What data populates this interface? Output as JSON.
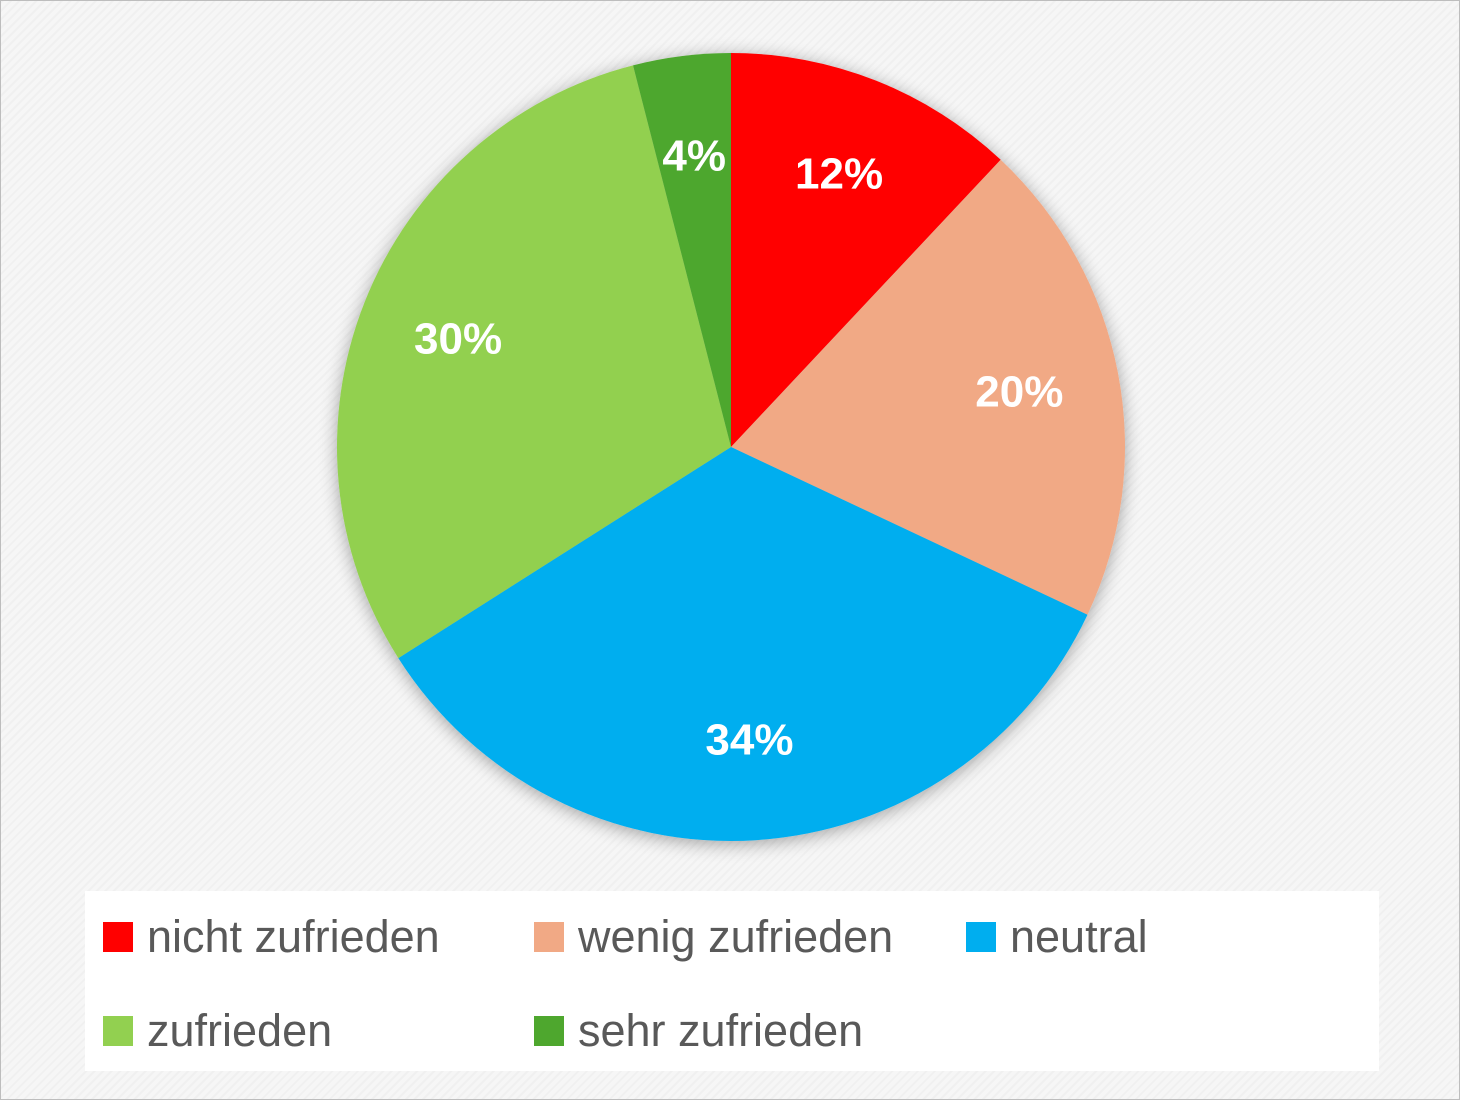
{
  "chart_data": {
    "type": "pie",
    "title": "",
    "categories": [
      "nicht zufrieden",
      "wenig zufrieden",
      "neutral",
      "zufrieden",
      "sehr zufrieden"
    ],
    "values": [
      12,
      20,
      34,
      30,
      4
    ],
    "labels": [
      "12%",
      "20%",
      "34%",
      "30%",
      "4%"
    ],
    "colors": [
      "#ff0000",
      "#f1a985",
      "#00aeef",
      "#92d050",
      "#4ea72e"
    ],
    "legend": "bottom",
    "start_angle": "12 o'clock, clockwise"
  },
  "legend": {
    "items": [
      {
        "label": "nicht zufrieden",
        "color": "#ff0000"
      },
      {
        "label": "wenig zufrieden",
        "color": "#f1a985"
      },
      {
        "label": "neutral",
        "color": "#00aeef"
      },
      {
        "label": "zufrieden",
        "color": "#92d050"
      },
      {
        "label": "sehr zufrieden",
        "color": "#4ea72e"
      }
    ]
  }
}
